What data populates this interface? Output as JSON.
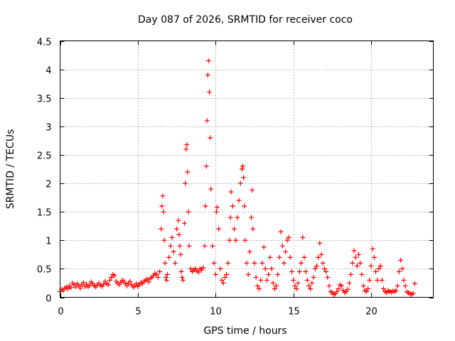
{
  "chart_data": {
    "type": "scatter",
    "title": "Day 087 of 2026, SRMTID for receiver coco",
    "xlabel": "GPS time / hours",
    "ylabel": "SRMTID / TECUs",
    "xlim": [
      0,
      24
    ],
    "ylim": [
      0,
      4.5
    ],
    "x_ticks": [
      0,
      5,
      10,
      15,
      20
    ],
    "y_ticks": [
      0,
      0.5,
      1,
      1.5,
      2,
      2.5,
      3,
      3.5,
      4,
      4.5
    ],
    "x_tick_labels": [
      "0",
      "5",
      "10",
      "15",
      "20"
    ],
    "y_tick_labels": [
      "0",
      "0.5",
      "1",
      "1.5",
      "2",
      "2.5",
      "3",
      "3.5",
      "4",
      "4.5"
    ],
    "grid": true,
    "marker": "+",
    "series": [
      {
        "name": "SRMTID",
        "color": "#ff0000",
        "x": [
          0.0,
          0.1,
          0.2,
          0.3,
          0.4,
          0.5,
          0.6,
          0.7,
          0.8,
          0.9,
          1.0,
          1.1,
          1.2,
          1.3,
          1.4,
          1.5,
          1.6,
          1.7,
          1.8,
          1.9,
          2.0,
          2.1,
          2.2,
          2.3,
          2.4,
          2.5,
          2.6,
          2.7,
          2.8,
          2.9,
          3.0,
          3.1,
          3.2,
          3.3,
          3.4,
          3.5,
          3.6,
          3.7,
          3.8,
          3.9,
          4.0,
          4.1,
          4.2,
          4.3,
          4.4,
          4.5,
          4.6,
          4.7,
          4.8,
          4.9,
          5.0,
          5.1,
          5.2,
          5.3,
          5.4,
          5.5,
          5.6,
          5.7,
          5.8,
          5.9,
          6.0,
          6.1,
          6.2,
          6.3,
          6.4,
          6.5,
          6.55,
          6.6,
          6.65,
          6.7,
          6.75,
          6.8,
          6.85,
          6.9,
          7.0,
          7.1,
          7.2,
          7.3,
          7.4,
          7.5,
          7.6,
          7.65,
          7.7,
          7.75,
          7.8,
          7.85,
          7.9,
          8.0,
          8.05,
          8.1,
          8.15,
          8.2,
          8.25,
          8.3,
          8.4,
          8.5,
          8.6,
          8.7,
          8.8,
          8.9,
          9.0,
          9.1,
          9.2,
          9.3,
          9.35,
          9.4,
          9.45,
          9.5,
          9.55,
          9.6,
          9.65,
          9.7,
          9.8,
          9.9,
          10.0,
          10.05,
          10.1,
          10.2,
          10.3,
          10.4,
          10.5,
          10.6,
          10.7,
          10.8,
          10.9,
          10.95,
          11.0,
          11.1,
          11.2,
          11.3,
          11.4,
          11.5,
          11.6,
          11.7,
          11.75,
          11.8,
          11.85,
          11.9,
          12.0,
          12.1,
          12.2,
          12.3,
          12.35,
          12.4,
          12.5,
          12.6,
          12.7,
          12.8,
          12.9,
          13.0,
          13.1,
          13.2,
          13.3,
          13.4,
          13.5,
          13.6,
          13.7,
          13.8,
          13.9,
          14.0,
          14.1,
          14.2,
          14.3,
          14.4,
          14.5,
          14.6,
          14.7,
          14.8,
          14.9,
          15.0,
          15.1,
          15.2,
          15.3,
          15.4,
          15.5,
          15.6,
          15.7,
          15.8,
          15.9,
          16.0,
          16.1,
          16.2,
          16.3,
          16.4,
          16.5,
          16.6,
          16.7,
          16.8,
          16.9,
          17.0,
          17.1,
          17.2,
          17.3,
          17.4,
          17.5,
          17.6,
          17.7,
          17.8,
          17.9,
          18.0,
          18.1,
          18.2,
          18.3,
          18.4,
          18.5,
          18.6,
          18.7,
          18.8,
          18.9,
          19.0,
          19.1,
          19.2,
          19.3,
          19.4,
          19.5,
          19.6,
          19.7,
          19.8,
          19.9,
          20.0,
          20.1,
          20.2,
          20.3,
          20.4,
          20.5,
          20.6,
          20.7,
          20.8,
          20.9,
          21.0,
          21.1,
          21.2,
          21.3,
          21.4,
          21.5,
          21.6,
          21.7,
          21.8,
          21.9,
          22.0,
          22.1,
          22.2,
          22.3,
          22.4,
          22.5,
          22.6,
          22.7,
          22.8
        ],
        "y": [
          0.1,
          0.14,
          0.12,
          0.16,
          0.18,
          0.15,
          0.2,
          0.17,
          0.25,
          0.22,
          0.18,
          0.24,
          0.2,
          0.16,
          0.22,
          0.26,
          0.19,
          0.23,
          0.18,
          0.21,
          0.27,
          0.24,
          0.2,
          0.18,
          0.22,
          0.25,
          0.21,
          0.19,
          0.23,
          0.28,
          0.24,
          0.22,
          0.3,
          0.35,
          0.4,
          0.38,
          0.28,
          0.25,
          0.22,
          0.26,
          0.3,
          0.28,
          0.24,
          0.2,
          0.25,
          0.28,
          0.22,
          0.18,
          0.2,
          0.24,
          0.19,
          0.22,
          0.26,
          0.24,
          0.28,
          0.3,
          0.32,
          0.27,
          0.33,
          0.35,
          0.38,
          0.42,
          0.4,
          0.35,
          0.45,
          1.2,
          1.6,
          1.78,
          1.5,
          1.0,
          0.6,
          0.35,
          0.3,
          0.4,
          0.7,
          0.9,
          1.05,
          0.8,
          0.6,
          1.2,
          1.35,
          1.1,
          0.9,
          0.75,
          0.45,
          0.35,
          0.3,
          1.3,
          2.0,
          2.6,
          2.68,
          2.2,
          1.5,
          0.9,
          0.5,
          0.45,
          0.48,
          0.5,
          0.46,
          0.44,
          0.5,
          0.48,
          0.52,
          0.9,
          1.6,
          2.3,
          3.1,
          3.9,
          4.15,
          3.6,
          2.8,
          1.9,
          0.9,
          0.6,
          0.4,
          1.5,
          1.58,
          1.2,
          0.5,
          0.3,
          0.25,
          0.35,
          0.4,
          0.6,
          1.0,
          1.4,
          1.85,
          1.6,
          1.2,
          1.0,
          1.4,
          1.7,
          2.0,
          2.25,
          2.3,
          2.1,
          1.6,
          1.0,
          0.6,
          0.4,
          0.8,
          1.4,
          1.88,
          1.2,
          0.6,
          0.35,
          0.2,
          0.15,
          0.3,
          0.6,
          0.88,
          0.5,
          0.3,
          0.4,
          0.7,
          0.5,
          0.25,
          0.15,
          0.2,
          0.4,
          0.7,
          1.15,
          0.9,
          0.6,
          0.8,
          1.0,
          1.05,
          0.7,
          0.45,
          0.3,
          0.2,
          0.15,
          0.25,
          0.45,
          0.6,
          1.05,
          0.7,
          0.45,
          0.3,
          0.2,
          0.15,
          0.25,
          0.35,
          0.5,
          0.55,
          0.7,
          0.95,
          0.75,
          0.6,
          0.5,
          0.45,
          0.35,
          0.2,
          0.1,
          0.08,
          0.05,
          0.06,
          0.1,
          0.15,
          0.22,
          0.2,
          0.12,
          0.08,
          0.1,
          0.14,
          0.25,
          0.4,
          0.6,
          0.82,
          0.7,
          0.55,
          0.75,
          0.6,
          0.4,
          0.2,
          0.12,
          0.1,
          0.15,
          0.3,
          0.55,
          0.85,
          0.7,
          0.45,
          0.3,
          0.5,
          0.55,
          0.3,
          0.15,
          0.1,
          0.08,
          0.12,
          0.1,
          0.09,
          0.11,
          0.1,
          0.12,
          0.2,
          0.45,
          0.65,
          0.5,
          0.3,
          0.2,
          0.1,
          0.08,
          0.06,
          0.05,
          0.07,
          0.24
        ]
      }
    ]
  }
}
